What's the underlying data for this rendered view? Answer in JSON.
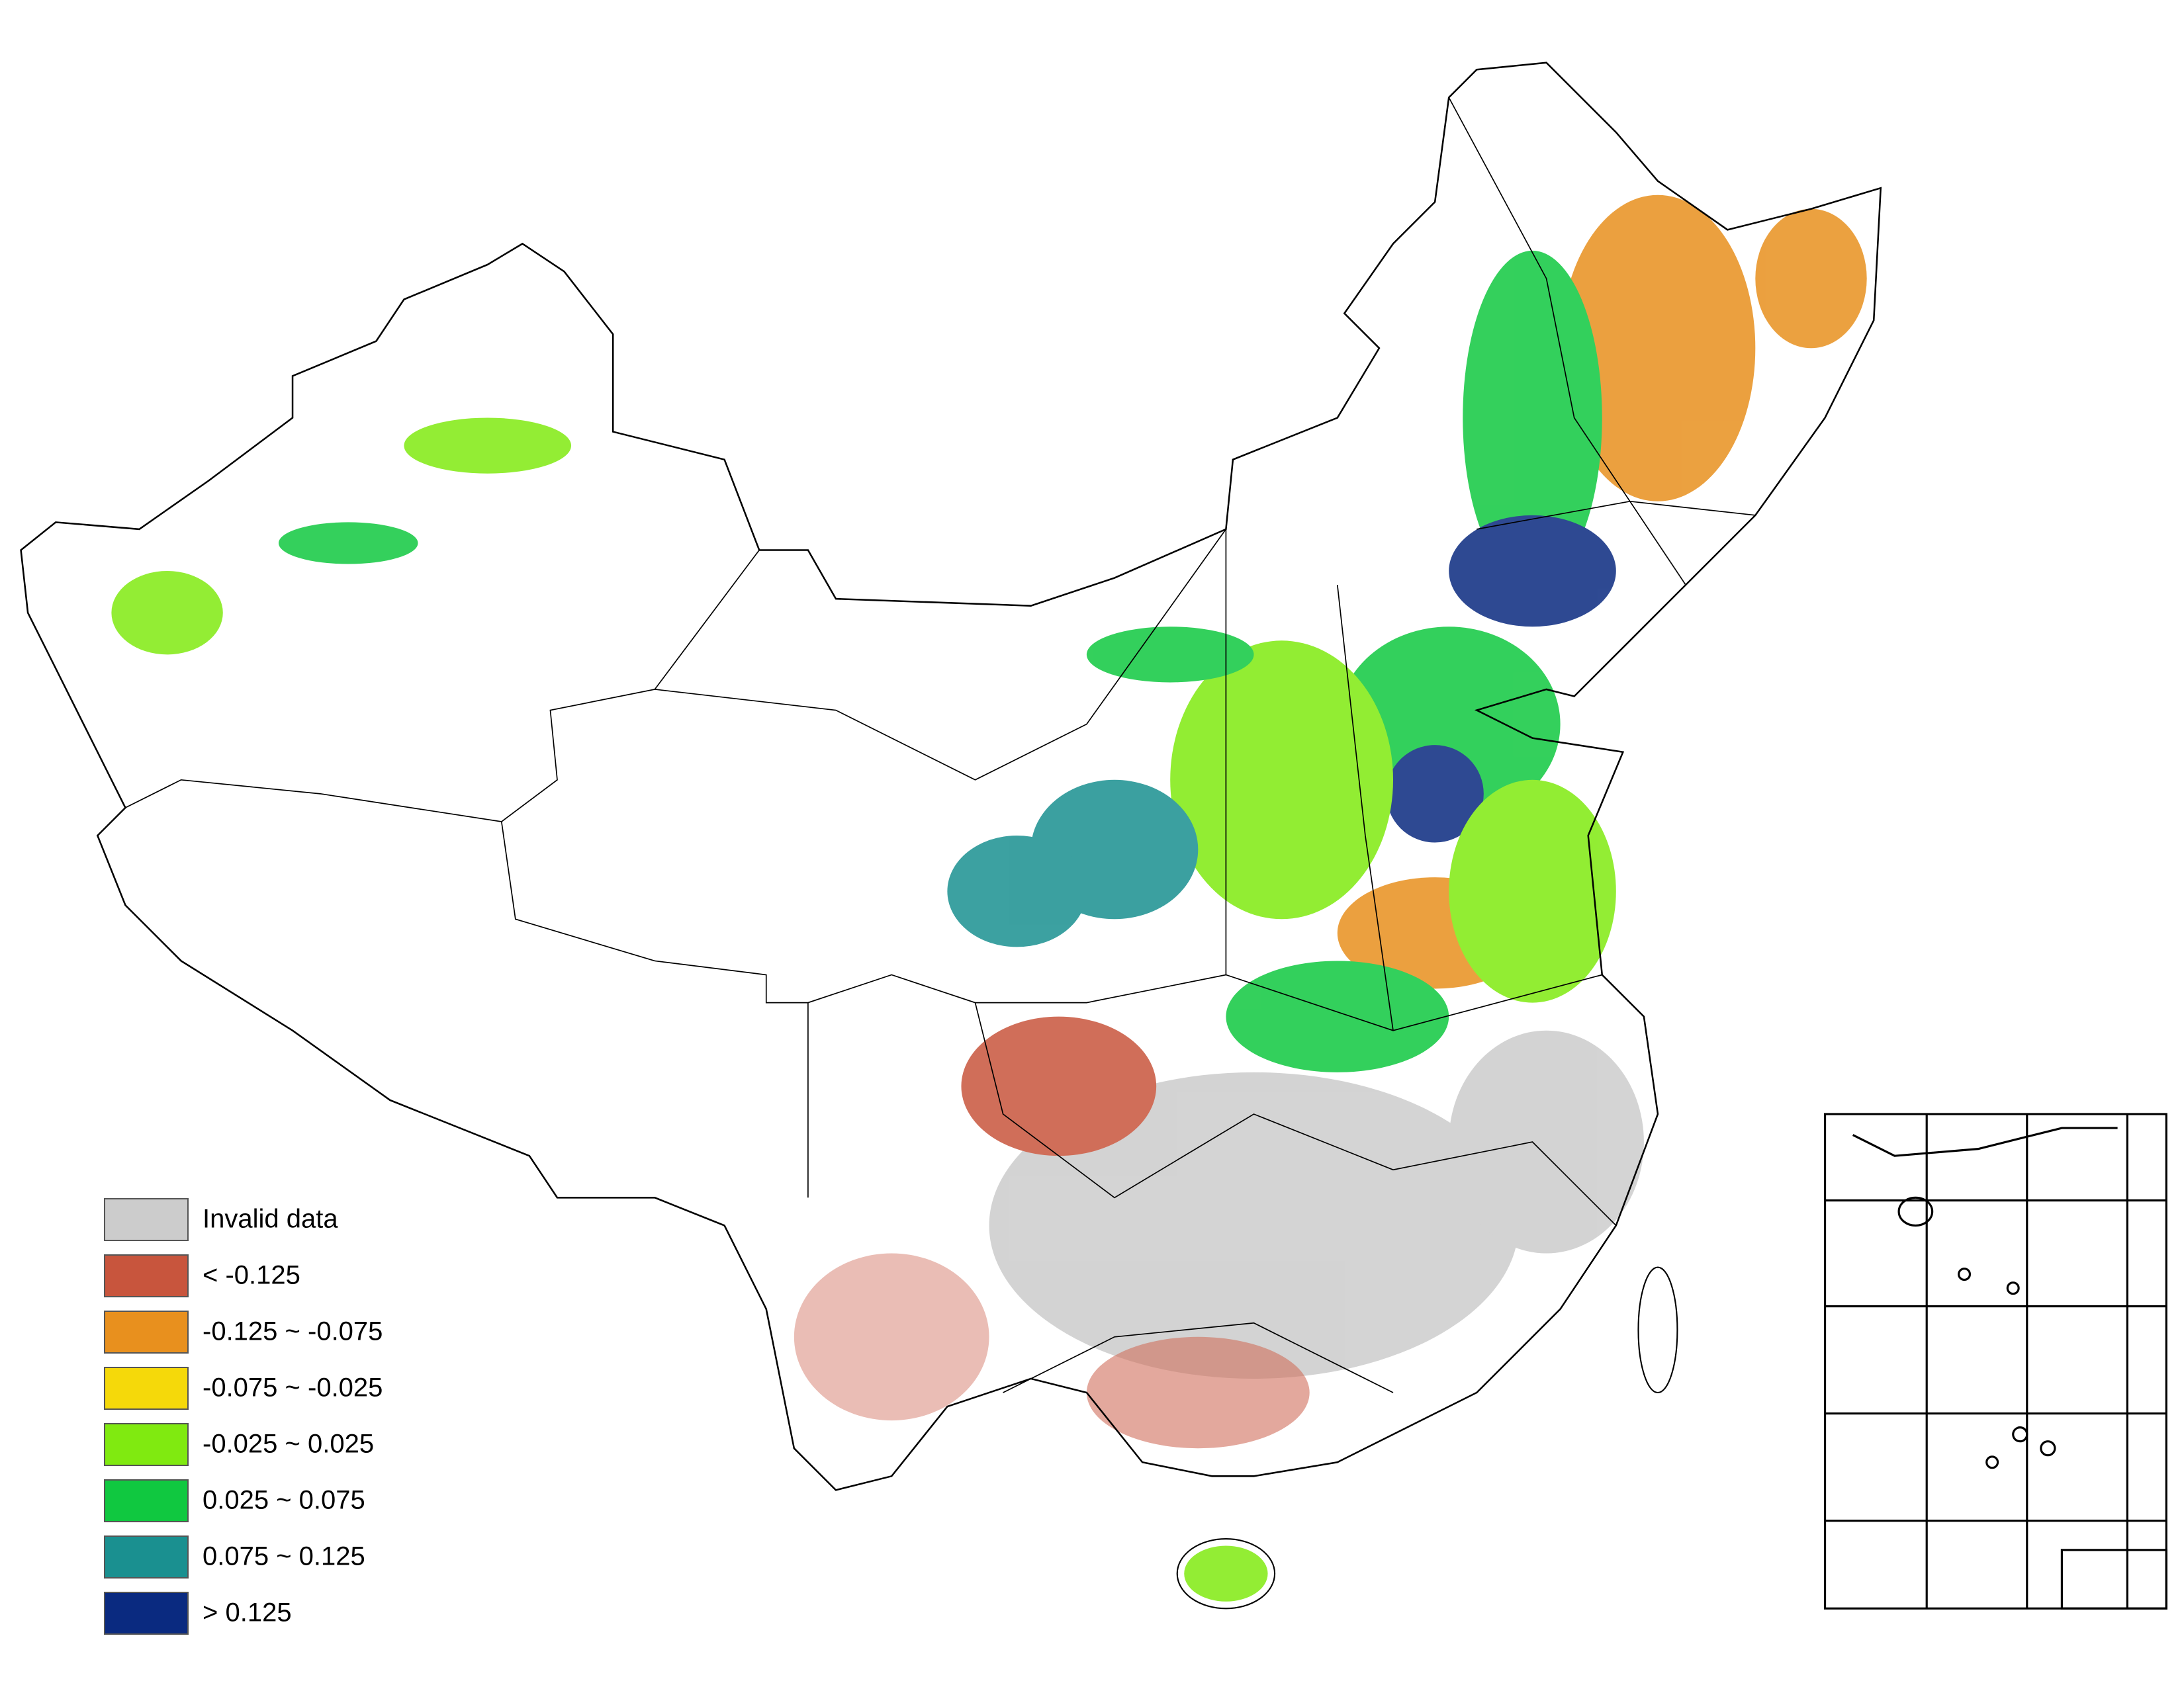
{
  "legend": {
    "items": [
      {
        "label": "Invalid data",
        "color": "#cccccc"
      },
      {
        "label": "< -0.125",
        "color": "#c8553d"
      },
      {
        "label": "-0.125 ~ -0.075",
        "color": "#e8901e"
      },
      {
        "label": "-0.075 ~ -0.025",
        "color": "#f5d90a"
      },
      {
        "label": "-0.025 ~ 0.025",
        "color": "#80ea10"
      },
      {
        "label": "0.025 ~ 0.075",
        "color": "#10c840"
      },
      {
        "label": "0.075 ~ 0.125",
        "color": "#1a9090"
      },
      {
        "label": "> 0.125",
        "color": "#0a2a80"
      }
    ]
  }
}
